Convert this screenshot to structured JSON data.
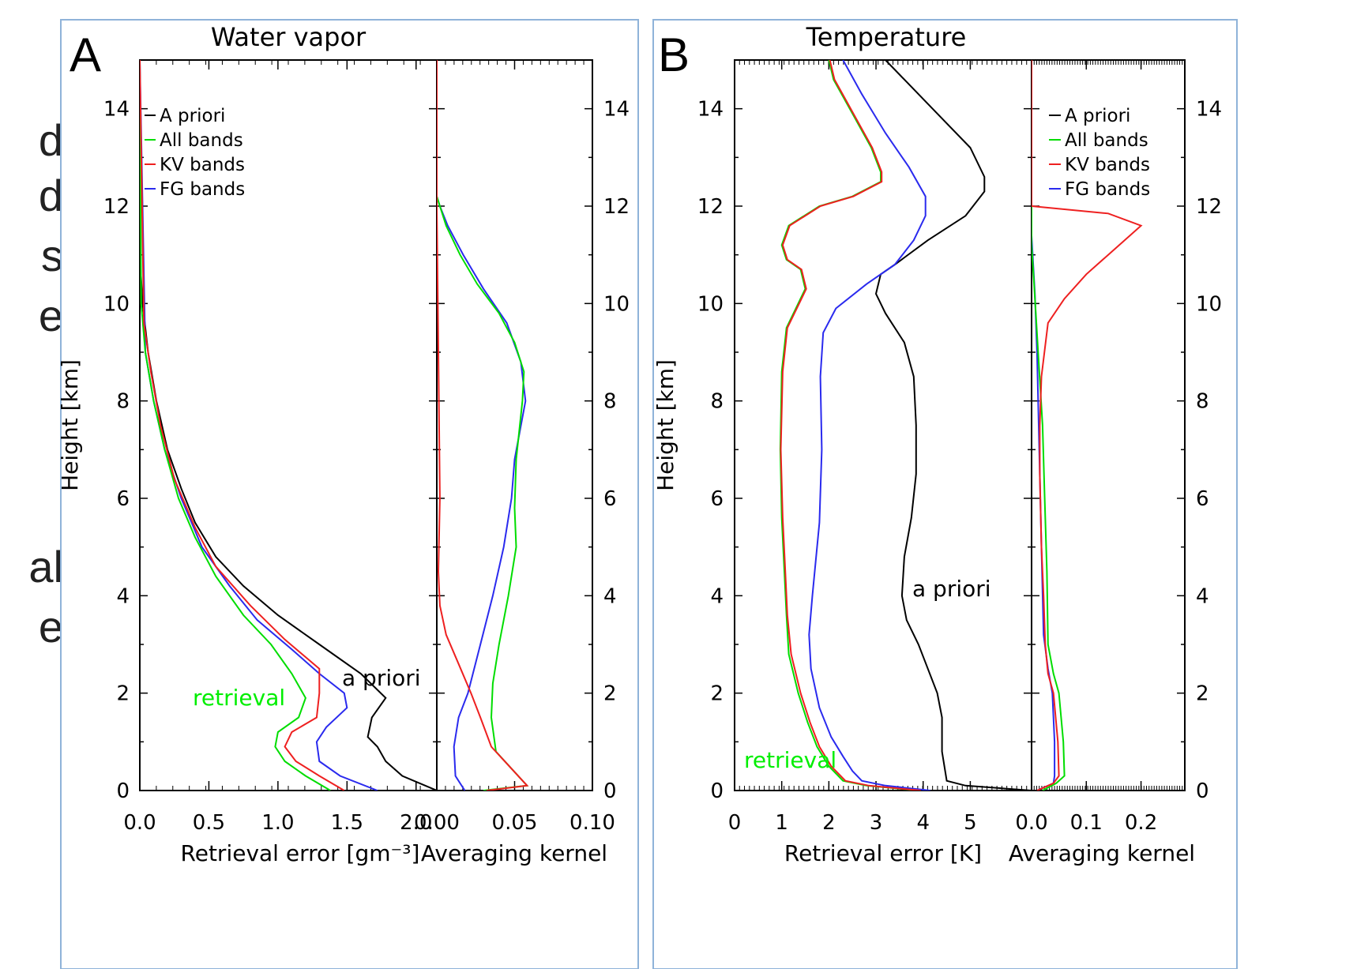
{
  "side_text": [
    "d",
    "d",
    "s",
    "e",
    "al",
    "e"
  ],
  "chart_data": [
    {
      "panel": "A",
      "title": "Water vapor",
      "type": "line",
      "ylabel": "Height [km]",
      "ylim": [
        0,
        15
      ],
      "yticks": [
        0,
        2,
        4,
        6,
        8,
        10,
        12,
        14
      ],
      "legend": [
        "A priori",
        "All bands",
        "KV bands",
        "FG bands"
      ],
      "legend_position": "top-left",
      "colors": {
        "A priori": "#000000",
        "All bands": "#00dd00",
        "KV bands": "#ee2020",
        "FG bands": "#2a2aee"
      },
      "annotations": [
        {
          "text": "a priori",
          "color": "#000000"
        },
        {
          "text": "retrieval",
          "color": "#00ee00"
        }
      ],
      "subplots": [
        {
          "name": "error",
          "xlabel": "Retrieval error [gm⁻³]",
          "xlim": [
            0,
            2.15
          ],
          "xticks": [
            "0.0",
            "0.5",
            "1.0",
            "1.5",
            "2.0"
          ],
          "series": [
            {
              "name": "A priori",
              "x": [
                2.15,
                1.9,
                1.78,
                1.72,
                1.65,
                1.68,
                1.78,
                1.6,
                1.3,
                1.0,
                0.75,
                0.55,
                0.4,
                0.3,
                0.2,
                0.12,
                0.06,
                0.02,
                0.0,
                0.0
              ],
              "y": [
                0,
                0.3,
                0.6,
                0.9,
                1.1,
                1.5,
                1.9,
                2.4,
                3.0,
                3.6,
                4.2,
                4.8,
                5.5,
                6.2,
                7.0,
                8.0,
                9.0,
                10.0,
                11.0,
                15.0
              ]
            },
            {
              "name": "All bands",
              "x": [
                1.38,
                1.2,
                1.05,
                0.98,
                1.0,
                1.15,
                1.2,
                1.1,
                0.95,
                0.75,
                0.55,
                0.4,
                0.28,
                0.18,
                0.1,
                0.04,
                0.01,
                0.0
              ],
              "y": [
                0,
                0.3,
                0.6,
                0.9,
                1.2,
                1.5,
                1.9,
                2.4,
                3.0,
                3.6,
                4.4,
                5.2,
                6.0,
                7.0,
                8.0,
                9.0,
                10.0,
                15.0
              ]
            },
            {
              "name": "KV bands",
              "x": [
                1.48,
                1.3,
                1.13,
                1.05,
                1.1,
                1.28,
                1.3,
                1.3,
                1.05,
                0.8,
                0.55,
                0.4,
                0.25,
                0.15,
                0.08,
                0.03,
                0.0
              ],
              "y": [
                0,
                0.3,
                0.6,
                0.9,
                1.2,
                1.5,
                2.0,
                2.5,
                3.1,
                3.8,
                4.6,
                5.4,
                6.4,
                7.5,
                8.6,
                9.6,
                15.0
              ]
            },
            {
              "name": "FG bands",
              "x": [
                1.72,
                1.45,
                1.3,
                1.28,
                1.35,
                1.5,
                1.48,
                1.3,
                1.1,
                0.85,
                0.65,
                0.45,
                0.3,
                0.18,
                0.1,
                0.04,
                0.0
              ],
              "y": [
                0,
                0.3,
                0.6,
                1.0,
                1.3,
                1.7,
                2.0,
                2.4,
                2.9,
                3.5,
                4.2,
                5.0,
                6.0,
                7.0,
                8.0,
                9.0,
                15.0
              ]
            }
          ]
        },
        {
          "name": "averaging-kernel",
          "xlabel": "Averaging kernel",
          "xlim": [
            0,
            0.1
          ],
          "xticks": [
            "0.00",
            "0.05",
            "0.10"
          ],
          "series": [
            {
              "name": "A priori",
              "x": [
                0,
                0
              ],
              "y": [
                0,
                15
              ]
            },
            {
              "name": "All bands",
              "x": [
                0.03,
                0.058,
                0.038,
                0.035,
                0.036,
                0.04,
                0.046,
                0.051,
                0.05,
                0.051,
                0.055,
                0.056,
                0.05,
                0.04,
                0.026,
                0.015,
                0.006,
                0.002,
                0.0,
                0.0
              ],
              "y": [
                0,
                0.1,
                0.8,
                1.5,
                2.2,
                3.0,
                4.0,
                5.0,
                5.8,
                6.8,
                8.0,
                8.6,
                9.2,
                9.8,
                10.4,
                11.0,
                11.6,
                12.0,
                12.2,
                15.0
              ]
            },
            {
              "name": "KV bands",
              "x": [
                0.032,
                0.058,
                0.035,
                0.028,
                0.022,
                0.014,
                0.006,
                0.002,
                0.001,
                0.002,
                0.001,
                0.0,
                0.0
              ],
              "y": [
                0,
                0.1,
                0.9,
                1.5,
                2.0,
                2.6,
                3.2,
                3.8,
                4.5,
                6.0,
                9.0,
                12.0,
                15.0
              ]
            },
            {
              "name": "FG bands",
              "x": [
                0.018,
                0.015,
                0.012,
                0.011,
                0.014,
                0.02,
                0.028,
                0.036,
                0.043,
                0.048,
                0.05,
                0.057,
                0.054,
                0.045,
                0.03,
                0.017,
                0.007,
                0.002,
                0.0,
                0.0
              ],
              "y": [
                0,
                0.15,
                0.3,
                0.9,
                1.5,
                2.0,
                3.0,
                4.0,
                5.0,
                6.0,
                6.8,
                8.0,
                8.8,
                9.6,
                10.3,
                11.0,
                11.6,
                12.0,
                12.2,
                15.0
              ]
            }
          ]
        }
      ]
    },
    {
      "panel": "B",
      "title": "Temperature",
      "type": "line",
      "ylabel": "Height [km]",
      "ylim": [
        0,
        15
      ],
      "yticks": [
        0,
        2,
        4,
        6,
        8,
        10,
        12,
        14
      ],
      "legend": [
        "A priori",
        "All bands",
        "KV bands",
        "FG bands"
      ],
      "legend_position": "top-right",
      "colors": {
        "A priori": "#000000",
        "All bands": "#00dd00",
        "KV bands": "#ee2020",
        "FG bands": "#2a2aee"
      },
      "annotations": [
        {
          "text": "a priori",
          "color": "#000000"
        },
        {
          "text": "retrieval",
          "color": "#00ee00"
        }
      ],
      "subplots": [
        {
          "name": "error",
          "xlabel": "Retrieval error [K]",
          "xlim": [
            0,
            6.3
          ],
          "xticks": [
            "0",
            "1",
            "2",
            "3",
            "4",
            "5"
          ],
          "series": [
            {
              "name": "A priori",
              "x": [
                6.3,
                4.9,
                4.5,
                4.4,
                4.4,
                4.3,
                4.1,
                3.9,
                3.65,
                3.55,
                3.6,
                3.75,
                3.85,
                3.85,
                3.8,
                3.6,
                3.2,
                3.0,
                3.1,
                3.4,
                4.1,
                4.9,
                5.3,
                5.3,
                5.0,
                4.3,
                3.5,
                3.2
              ],
              "y": [
                0,
                0.1,
                0.2,
                0.8,
                1.5,
                2.0,
                2.5,
                3.0,
                3.5,
                4.0,
                4.8,
                5.6,
                6.5,
                7.5,
                8.5,
                9.2,
                9.8,
                10.2,
                10.6,
                10.8,
                11.3,
                11.8,
                12.3,
                12.6,
                13.2,
                13.9,
                14.7,
                15.0
              ]
            },
            {
              "name": "All bands",
              "x": [
                3.9,
                2.8,
                2.3,
                2.0,
                1.75,
                1.55,
                1.35,
                1.15,
                1.1,
                1.05,
                1.0,
                0.97,
                1.0,
                1.1,
                1.3,
                1.5,
                1.4,
                1.1,
                1.0,
                1.15,
                1.8,
                2.5,
                3.1,
                3.1,
                2.9,
                2.5,
                2.1,
                2.0
              ],
              "y": [
                0,
                0.1,
                0.2,
                0.5,
                0.9,
                1.4,
                2.0,
                2.8,
                3.6,
                4.6,
                5.6,
                7.0,
                8.6,
                9.5,
                9.9,
                10.3,
                10.7,
                10.9,
                11.2,
                11.6,
                12.0,
                12.2,
                12.5,
                12.7,
                13.2,
                13.9,
                14.6,
                15.0
              ]
            },
            {
              "name": "KV bands",
              "x": [
                3.95,
                2.85,
                2.35,
                2.05,
                1.8,
                1.6,
                1.4,
                1.2,
                1.12,
                1.07,
                1.02,
                0.98,
                1.02,
                1.12,
                1.32,
                1.52,
                1.42,
                1.12,
                1.02,
                1.17,
                1.82,
                2.52,
                3.12,
                3.12,
                2.92,
                2.52,
                2.12,
                2.02
              ],
              "y": [
                0,
                0.1,
                0.2,
                0.5,
                0.9,
                1.4,
                2.0,
                2.8,
                3.6,
                4.6,
                5.6,
                7.0,
                8.6,
                9.5,
                9.9,
                10.3,
                10.7,
                10.9,
                11.2,
                11.6,
                12.0,
                12.2,
                12.5,
                12.7,
                13.2,
                13.9,
                14.6,
                15.0
              ]
            },
            {
              "name": "FG bands",
              "x": [
                4.15,
                3.2,
                2.7,
                2.5,
                2.3,
                2.05,
                1.8,
                1.62,
                1.58,
                1.65,
                1.8,
                1.85,
                1.82,
                1.88,
                2.15,
                2.8,
                3.4,
                3.8,
                4.05,
                4.05,
                3.7,
                3.2,
                2.7,
                2.3
              ],
              "y": [
                0,
                0.1,
                0.2,
                0.4,
                0.7,
                1.1,
                1.7,
                2.5,
                3.2,
                4.0,
                5.5,
                7.0,
                8.5,
                9.4,
                9.9,
                10.4,
                10.8,
                11.3,
                11.8,
                12.2,
                12.8,
                13.5,
                14.3,
                15.0
              ]
            }
          ]
        },
        {
          "name": "averaging-kernel",
          "xlabel": "Averaging kernel",
          "xlim": [
            0,
            0.28
          ],
          "xticks": [
            "0.0",
            "0.1",
            "0.2"
          ],
          "series": [
            {
              "name": "A priori",
              "x": [
                0,
                0
              ],
              "y": [
                0,
                15
              ]
            },
            {
              "name": "All bands",
              "x": [
                0.02,
                0.045,
                0.06,
                0.058,
                0.05,
                0.04,
                0.03,
                0.028,
                0.024,
                0.02,
                0.012,
                0.004,
                0.0,
                0.0
              ],
              "y": [
                0,
                0.15,
                0.3,
                1.0,
                2.0,
                2.4,
                3.0,
                4.5,
                6.0,
                7.5,
                9.0,
                10.5,
                11.2,
                15.0
              ]
            },
            {
              "name": "KV bands",
              "x": [
                0.01,
                0.04,
                0.05,
                0.048,
                0.04,
                0.03,
                0.025,
                0.022,
                0.018,
                0.015,
                0.015,
                0.018,
                0.03,
                0.06,
                0.1,
                0.14,
                0.2,
                0.14,
                0.0,
                0.0
              ],
              "y": [
                0,
                0.15,
                0.3,
                1.0,
                2.0,
                2.4,
                3.0,
                4.0,
                5.0,
                6.5,
                7.5,
                8.5,
                9.6,
                10.1,
                10.6,
                11.0,
                11.6,
                11.85,
                12.0,
                15.0
              ]
            },
            {
              "name": "FG bands",
              "x": [
                0.01,
                0.04,
                0.042,
                0.042,
                0.038,
                0.03,
                0.022,
                0.018,
                0.014,
                0.01,
                0.006,
                0.002,
                0.0,
                0.0
              ],
              "y": [
                0,
                0.15,
                0.3,
                1.0,
                2.0,
                2.5,
                3.2,
                5.0,
                7.0,
                9.0,
                10.2,
                11.0,
                11.4,
                15.0
              ]
            }
          ]
        }
      ]
    }
  ]
}
